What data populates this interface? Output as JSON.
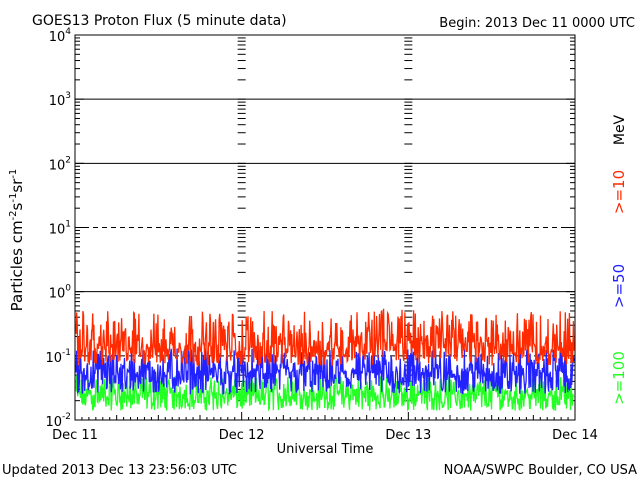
{
  "chart_data": {
    "type": "line",
    "title": "GOES13 Proton Flux (5 minute data)",
    "begin": "Begin: 2013 Dec 11 0000 UTC",
    "xlabel": "Universal Time",
    "ylabel_main": "Particles cm",
    "ylabel_sup1": "-2",
    "ylabel_mid1": "s",
    "ylabel_sup2": "-1",
    "ylabel_mid2": "sr",
    "ylabel_sup3": "-1",
    "x_categories": [
      "Dec 11",
      "Dec 12",
      "Dec 13",
      "Dec 14"
    ],
    "y_scale": "log",
    "ylim": [
      0.01,
      10000
    ],
    "y_ticks": [
      {
        "base": "10",
        "exp": "4",
        "value": 10000
      },
      {
        "base": "10",
        "exp": "3",
        "value": 1000
      },
      {
        "base": "10",
        "exp": "2",
        "value": 100
      },
      {
        "base": "10",
        "exp": "1",
        "value": 10
      },
      {
        "base": "10",
        "exp": "0",
        "value": 1
      },
      {
        "base": "10",
        "exp": "-1",
        "value": 0.1
      },
      {
        "base": "10",
        "exp": "-2",
        "value": 0.01
      }
    ],
    "threshold_lines": [
      {
        "value": 1000,
        "style": "solid"
      },
      {
        "value": 100,
        "style": "solid"
      },
      {
        "value": 10,
        "style": "dashed"
      },
      {
        "value": 1,
        "style": "solid"
      },
      {
        "value": 0.1,
        "style": "dashed"
      }
    ],
    "series": [
      {
        "name": ">=10",
        "color": "#ff2a00",
        "typical": 0.14,
        "high": 0.5,
        "low": 0.07
      },
      {
        "name": ">=50",
        "color": "#2222ff",
        "typical": 0.055,
        "high": 0.13,
        "low": 0.025
      },
      {
        "name": ">=100",
        "color": "#22ff22",
        "typical": 0.025,
        "high": 0.05,
        "low": 0.014
      }
    ],
    "unit_label": "MeV"
  },
  "footer": {
    "updated": "Updated 2013 Dec 13 23:56:03 UTC",
    "source": "NOAA/SWPC Boulder, CO USA"
  }
}
